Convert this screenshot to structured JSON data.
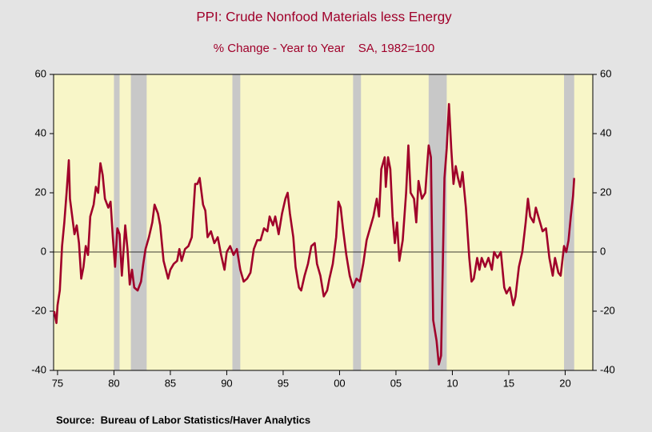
{
  "chart_data": {
    "type": "line",
    "title": "PPI: Crude Nonfood Materials less Energy",
    "subtitle": "% Change - Year to Year    SA, 1982=100",
    "source": "Source:  Bureau of Labor Statistics/Haver Analytics",
    "x": [
      1974.7,
      1974.9,
      1975.0,
      1975.2,
      1975.4,
      1975.6,
      1975.8,
      1976.0,
      1976.1,
      1976.3,
      1976.5,
      1976.7,
      1976.9,
      1977.1,
      1977.3,
      1977.5,
      1977.7,
      1977.9,
      1978.2,
      1978.4,
      1978.6,
      1978.8,
      1979.0,
      1979.2,
      1979.5,
      1979.7,
      1979.9,
      1980.1,
      1980.3,
      1980.5,
      1980.7,
      1981.0,
      1981.2,
      1981.4,
      1981.6,
      1981.8,
      1982.1,
      1982.4,
      1982.6,
      1982.8,
      1983.1,
      1983.4,
      1983.6,
      1983.9,
      1984.1,
      1984.4,
      1984.6,
      1984.8,
      1985.0,
      1985.3,
      1985.6,
      1985.8,
      1986.0,
      1986.3,
      1986.6,
      1986.9,
      1987.2,
      1987.4,
      1987.6,
      1987.9,
      1988.1,
      1988.3,
      1988.6,
      1988.9,
      1989.2,
      1989.5,
      1989.8,
      1990.0,
      1990.3,
      1990.6,
      1990.9,
      1991.2,
      1991.5,
      1991.8,
      1992.1,
      1992.4,
      1992.7,
      1993.0,
      1993.3,
      1993.6,
      1993.8,
      1994.1,
      1994.3,
      1994.6,
      1994.9,
      1995.2,
      1995.4,
      1995.6,
      1995.9,
      1996.1,
      1996.4,
      1996.6,
      1996.9,
      1997.2,
      1997.5,
      1997.8,
      1998.0,
      1998.3,
      1998.6,
      1998.9,
      1999.1,
      1999.4,
      1999.7,
      1999.9,
      2000.1,
      2000.3,
      2000.6,
      2000.9,
      2001.2,
      2001.5,
      2001.8,
      2002.1,
      2002.4,
      2002.7,
      2003.0,
      2003.3,
      2003.5,
      2003.7,
      2004.0,
      2004.1,
      2004.3,
      2004.5,
      2004.7,
      2004.9,
      2005.1,
      2005.3,
      2005.6,
      2005.9,
      2006.1,
      2006.3,
      2006.6,
      2006.8,
      2007.0,
      2007.3,
      2007.6,
      2007.8,
      2007.9,
      2008.1,
      2008.3,
      2008.6,
      2008.8,
      2009.0,
      2009.3,
      2009.5,
      2009.7,
      2009.9,
      2010.1,
      2010.3,
      2010.5,
      2010.7,
      2010.9,
      2011.2,
      2011.5,
      2011.7,
      2011.9,
      2012.2,
      2012.4,
      2012.6,
      2012.9,
      2013.2,
      2013.5,
      2013.7,
      2014.0,
      2014.3,
      2014.6,
      2014.8,
      2015.1,
      2015.4,
      2015.6,
      2015.9,
      2016.2,
      2016.5,
      2016.7,
      2016.9,
      2017.2,
      2017.4,
      2017.7,
      2018.0,
      2018.3,
      2018.6,
      2018.9,
      2019.1,
      2019.4,
      2019.6,
      2019.9,
      2020.1,
      2020.3,
      2020.5,
      2020.7,
      2020.8
    ],
    "series": [
      {
        "color": "#a0002a",
        "values": [
          -20,
          -24,
          -18,
          -13,
          2,
          10,
          20,
          31,
          18,
          12,
          6,
          9,
          3,
          -9,
          -5,
          2,
          -1,
          12,
          16,
          22,
          20,
          30,
          26,
          18,
          15,
          17,
          5,
          -5,
          8,
          6,
          -8,
          9,
          1,
          -11,
          -6,
          -12,
          -13,
          -10,
          -4,
          1,
          5,
          10,
          16,
          13,
          9,
          -3,
          -6,
          -9,
          -6,
          -4,
          -3,
          1,
          -3,
          1,
          2,
          5,
          23,
          23,
          25,
          16,
          14,
          5,
          7,
          3,
          5,
          -1,
          -6,
          0,
          2,
          -1,
          1,
          -6,
          -10,
          -9,
          -7,
          1,
          4,
          4,
          8,
          7,
          12,
          9,
          12,
          6,
          13,
          18,
          20,
          13,
          5,
          -5,
          -12,
          -13,
          -8,
          -4,
          2,
          3,
          -4,
          -8,
          -15,
          -13,
          -9,
          -4,
          5,
          17,
          15,
          8,
          -1,
          -8,
          -12,
          -9,
          -10,
          -4,
          4,
          8,
          12,
          18,
          12,
          28,
          32,
          22,
          32,
          28,
          12,
          3,
          10,
          -3,
          4,
          20,
          36,
          20,
          18,
          10,
          24,
          18,
          20,
          31,
          36,
          32,
          -23,
          -30,
          -38,
          -35,
          25,
          35,
          50,
          35,
          23,
          29,
          25,
          22,
          27,
          15,
          -2,
          -10,
          -9,
          -2,
          -6,
          -2,
          -5,
          -2,
          -6,
          0,
          -2,
          0,
          -12,
          -14,
          -12,
          -18,
          -15,
          -5,
          0,
          10,
          18,
          12,
          10,
          15,
          11,
          7,
          8,
          -2,
          -8,
          -2,
          -7,
          -8,
          2,
          0,
          4,
          12,
          19,
          25
        ]
      }
    ],
    "recessions": [
      [
        1980.0,
        1980.5
      ],
      [
        1981.5,
        1982.9
      ],
      [
        1990.5,
        1991.2
      ],
      [
        2001.2,
        2001.9
      ],
      [
        2007.9,
        2009.5
      ],
      [
        2019.9,
        2020.8
      ]
    ],
    "xlim": [
      1974.65,
      2022.45
    ],
    "xticks": [
      {
        "value": 1975,
        "label": "75"
      },
      {
        "value": 1980,
        "label": "80"
      },
      {
        "value": 1985,
        "label": "85"
      },
      {
        "value": 1990,
        "label": "90"
      },
      {
        "value": 1995,
        "label": "95"
      },
      {
        "value": 2000,
        "label": "00"
      },
      {
        "value": 2005,
        "label": "05"
      },
      {
        "value": 2010,
        "label": "10"
      },
      {
        "value": 2015,
        "label": "15"
      },
      {
        "value": 2020,
        "label": "20"
      }
    ],
    "ylim": [
      -40,
      60
    ],
    "yticks": [
      -40,
      -20,
      0,
      20,
      40,
      60
    ],
    "y2lim": [
      -40,
      60
    ],
    "y2ticks": [
      -40,
      -20,
      0,
      20,
      40,
      60
    ],
    "zero_line": true
  }
}
